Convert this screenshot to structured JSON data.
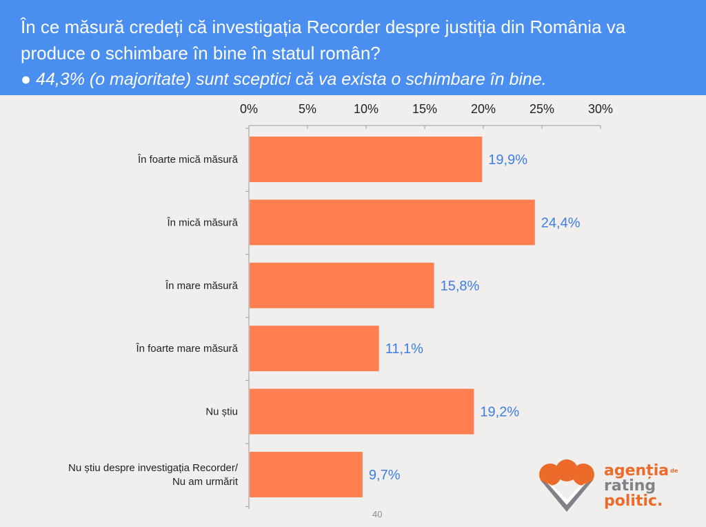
{
  "header": {
    "question": "În ce măsură credeți că investigația Recorder despre justiția din România va produce o schimbare în bine în statul român?",
    "subtitle": "● 44,3% (o majoritate) sunt sceptici că va exista o schimbare în bine."
  },
  "chart_data": {
    "type": "bar",
    "orientation": "horizontal",
    "categories": [
      "În foarte mică măsură",
      "În mică măsură",
      "În mare măsură",
      "În foarte mare măsură",
      "Nu știu",
      "Nu știu despre investigația Recorder/ Nu am urmărit"
    ],
    "category_lines": [
      [
        "În foarte mică măsură"
      ],
      [
        "În mică măsură"
      ],
      [
        "În mare măsură"
      ],
      [
        "În foarte mare măsură"
      ],
      [
        "Nu știu"
      ],
      [
        "Nu știu despre investigația Recorder/",
        "Nu am urmărit"
      ]
    ],
    "values": [
      19.9,
      24.4,
      15.8,
      11.1,
      19.2,
      9.7
    ],
    "value_labels": [
      "19,9%",
      "24,4%",
      "15,8%",
      "11,1%",
      "19,2%",
      "9,7%"
    ],
    "xlim": [
      0,
      30
    ],
    "xticks": [
      0,
      5,
      10,
      15,
      20,
      25,
      30
    ],
    "xtick_labels": [
      "0%",
      "5%",
      "10%",
      "15%",
      "20%",
      "25%",
      "30%"
    ],
    "axis_position": "top",
    "grid": false,
    "legend": "none",
    "bar_color": "#ff7f50",
    "label_color": "#3c7ee6"
  },
  "footer": {
    "page_number": "40",
    "logo_lines": [
      "agenția",
      "rating",
      "politic."
    ],
    "logo_superscript": "de"
  },
  "colors": {
    "header_bg": "#4a8ef0",
    "background": "#f0efee",
    "logo_orange": "#ec6a2a",
    "logo_gray": "#7f8288"
  }
}
